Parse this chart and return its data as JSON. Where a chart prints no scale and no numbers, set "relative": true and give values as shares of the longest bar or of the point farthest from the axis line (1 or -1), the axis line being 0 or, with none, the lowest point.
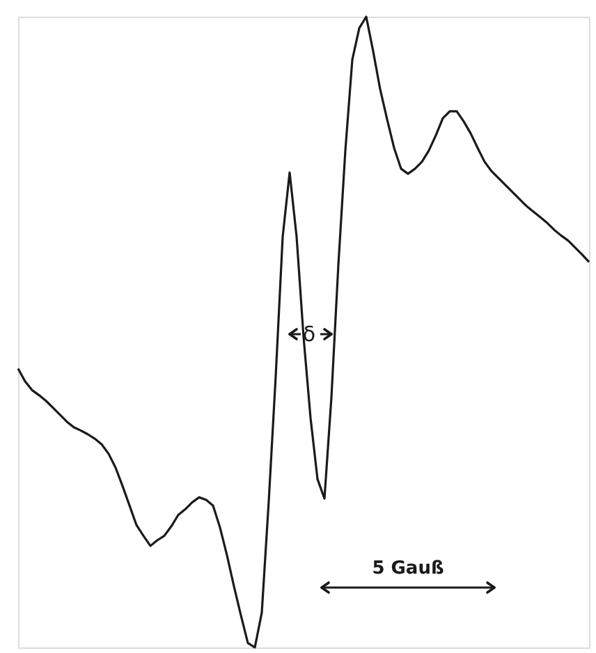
{
  "chart_data": {
    "type": "line",
    "relative": true,
    "tick_labels": false,
    "line_style": "solid",
    "categories": [
      null,
      null,
      null,
      null,
      null,
      null,
      null,
      null,
      null,
      null,
      null,
      null,
      null,
      null,
      null,
      null,
      null,
      null,
      null,
      null,
      null,
      null,
      null,
      null,
      null,
      null,
      null,
      null,
      null,
      null,
      null,
      null,
      null,
      null,
      null,
      null,
      null,
      null,
      null,
      null,
      null,
      null,
      null,
      null,
      null,
      null,
      null,
      null,
      null,
      null,
      null,
      null,
      null,
      null,
      null,
      null,
      null,
      null,
      null,
      null,
      null,
      null,
      null,
      null,
      null,
      null,
      null,
      null,
      null,
      null,
      null,
      null,
      null,
      null,
      null,
      null,
      null,
      null,
      null,
      null,
      null,
      null,
      null
    ],
    "series": [
      {
        "color": "#1a1a1a",
        "values": [
          0.442,
          0.422,
          0.408,
          0.4,
          0.391,
          0.38,
          0.369,
          0.358,
          0.349,
          0.344,
          0.338,
          0.331,
          0.322,
          0.307,
          0.285,
          0.256,
          0.225,
          0.194,
          0.177,
          0.161,
          0.17,
          0.177,
          0.192,
          0.21,
          0.219,
          0.23,
          0.238,
          0.234,
          0.225,
          0.19,
          0.146,
          0.097,
          0.051,
          0.007,
          0,
          0.055,
          0.232,
          0.43,
          0.651,
          0.753,
          0.651,
          0.492,
          0.364,
          0.267,
          0.236,
          0.397,
          0.607,
          0.788,
          0.932,
          0.982,
          1,
          0.945,
          0.885,
          0.837,
          0.792,
          0.759,
          0.751,
          0.759,
          0.77,
          0.788,
          0.812,
          0.839,
          0.85,
          0.85,
          0.834,
          0.815,
          0.792,
          0.77,
          0.755,
          0.744,
          0.733,
          0.722,
          0.711,
          0.7,
          0.691,
          0.682,
          0.673,
          0.662,
          0.653,
          0.645,
          0.634,
          0.623,
          0.611
        ]
      }
    ],
    "annotations": [
      "δ",
      "5 Gauß"
    ]
  }
}
